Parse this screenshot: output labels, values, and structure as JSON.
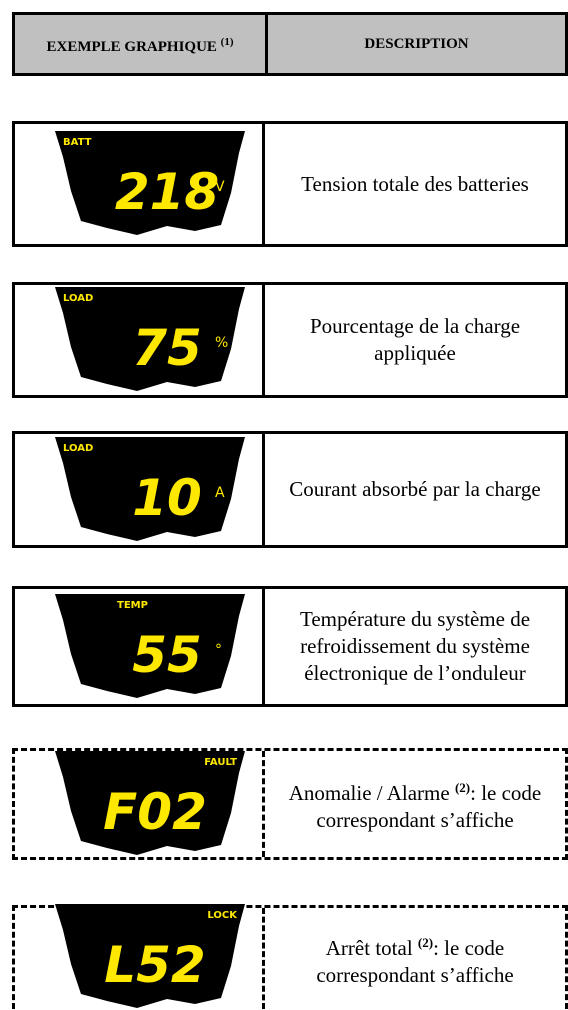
{
  "header": {
    "col1": "EXEMPLE GRAPHIQUE",
    "col1_note": "(1)",
    "col2": "DESCRIPTION"
  },
  "rows": [
    {
      "indicator": "BATT",
      "reading": "218",
      "unit": "V",
      "description": "Tension totale des batteries"
    },
    {
      "indicator": "LOAD",
      "reading": "75",
      "unit": "%",
      "description": "Pourcentage de la charge appliquée"
    },
    {
      "indicator": "LOAD",
      "reading": "10",
      "unit": "A",
      "description": "Courant absorbé par la charge"
    },
    {
      "indicator": "TEMP",
      "reading": "55",
      "unit": "°",
      "description": "Température du système de refroidissement du système électronique de l’onduleur"
    },
    {
      "indicator": "FAULT",
      "reading": "F02",
      "description": "Anomalie / Alarme",
      "note": "(2)",
      "description_end": ": le code correspondant s’affiche"
    },
    {
      "indicator": "LOCK",
      "reading": "L52",
      "description": "Arrêt total",
      "note": "(2)",
      "description_end": ": le code correspondant s’affiche"
    }
  ]
}
